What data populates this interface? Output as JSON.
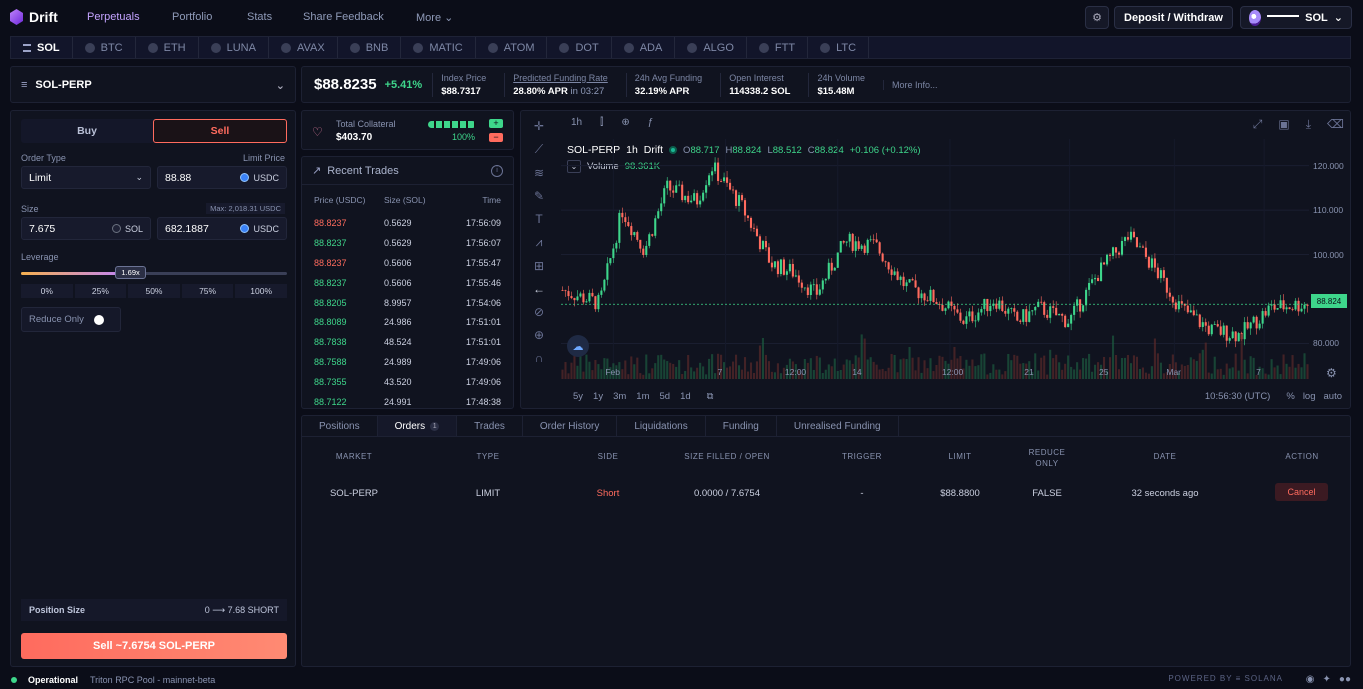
{
  "app": {
    "name": "Drift"
  },
  "nav": {
    "perpetuals": "Perpetuals",
    "portfolio": "Portfolio",
    "stats": "Stats",
    "feedback": "Share Feedback",
    "more": "More"
  },
  "header": {
    "deposit_withdraw": "Deposit / Withdraw",
    "wallet_label": "SOL"
  },
  "markets": [
    "SOL",
    "BTC",
    "ETH",
    "LUNA",
    "AVAX",
    "BNB",
    "MATIC",
    "ATOM",
    "DOT",
    "ADA",
    "ALGO",
    "FTT",
    "LTC"
  ],
  "pair": "SOL-PERP",
  "stats": {
    "price": "$88.8235",
    "change": "+5.41%",
    "index_label": "Index Price",
    "index_value": "$88.7317",
    "funding_label": "Predicted Funding Rate",
    "funding_value": "28.80% APR",
    "funding_in": "in 03:27",
    "avg_label": "24h Avg Funding",
    "avg_value": "32.19% APR",
    "oi_label": "Open Interest",
    "oi_value": "114338.2 SOL",
    "vol_label": "24h Volume",
    "vol_value": "$15.48M",
    "more": "More Info..."
  },
  "order": {
    "buy": "Buy",
    "sell": "Sell",
    "order_type_label": "Order Type",
    "order_type": "Limit",
    "limit_label": "Limit Price",
    "limit_value": "88.88",
    "usdc": "USDC",
    "size_label": "Size",
    "max_label": "Max: 2,018.31 USDC",
    "size_value": "7.675",
    "sol": "SOL",
    "size_usdc": "682.1887",
    "leverage_label": "Leverage",
    "leverage_value": "1.69x",
    "leverage_fraction": 0.4,
    "lev_options": [
      "0%",
      "25%",
      "50%",
      "75%",
      "100%"
    ],
    "reduce_only": "Reduce Only",
    "position_label": "Position Size",
    "position_value": "0 ⟶ 7.68 SHORT",
    "submit": "Sell ~7.6754 SOL-PERP"
  },
  "collateral": {
    "label": "Total Collateral",
    "value": "$403.70",
    "pct": "100%"
  },
  "trades": {
    "title": "Recent Trades",
    "cols": [
      "Price (USDC)",
      "Size (SOL)",
      "Time"
    ],
    "rows": [
      {
        "price": "88.8237",
        "size": "0.5629",
        "time": "17:56:09",
        "side": "red"
      },
      {
        "price": "88.8237",
        "size": "0.5629",
        "time": "17:56:07",
        "side": "green"
      },
      {
        "price": "88.8237",
        "size": "0.5606",
        "time": "17:55:47",
        "side": "red"
      },
      {
        "price": "88.8237",
        "size": "0.5606",
        "time": "17:55:46",
        "side": "green"
      },
      {
        "price": "88.8205",
        "size": "8.9957",
        "time": "17:54:06",
        "side": "green"
      },
      {
        "price": "88.8089",
        "size": "24.986",
        "time": "17:51:01",
        "side": "green"
      },
      {
        "price": "88.7838",
        "size": "48.524",
        "time": "17:51:01",
        "side": "green"
      },
      {
        "price": "88.7588",
        "size": "24.989",
        "time": "17:49:06",
        "side": "green"
      },
      {
        "price": "88.7355",
        "size": "43.520",
        "time": "17:49:06",
        "side": "green"
      },
      {
        "price": "88.7122",
        "size": "24.991",
        "time": "17:48:38",
        "side": "green"
      }
    ]
  },
  "chart": {
    "interval": "1h",
    "symbol": "SOL-PERP",
    "source": "Drift",
    "o": "88.717",
    "h": "88.824",
    "l": "88.512",
    "c": "88.824",
    "chg": "+0.106 (+0.12%)",
    "volume_label": "Volume",
    "volume_value": "98.361K",
    "y_ticks": [
      "120.000",
      "110.000",
      "100.000",
      "80.000"
    ],
    "x_ticks": [
      "Feb",
      "7",
      "12:00",
      "14",
      "12:00",
      "21",
      "25",
      "Mar",
      "7"
    ],
    "ranges": [
      "5y",
      "1y",
      "3m",
      "1m",
      "5d",
      "1d"
    ],
    "time": "10:56:30 (UTC)",
    "pct": "%",
    "log": "log",
    "auto": "auto",
    "last": "88.824"
  },
  "orders": {
    "tabs": [
      "Positions",
      "Orders",
      "Trades",
      "Order History",
      "Liquidations",
      "Funding",
      "Unrealised Funding"
    ],
    "orders_count": "1",
    "headers": [
      "MARKET",
      "TYPE",
      "SIDE",
      "SIZE FILLED / OPEN",
      "TRIGGER",
      "LIMIT",
      "REDUCE ONLY",
      "DATE",
      "ACTION"
    ],
    "row": {
      "market": "SOL-PERP",
      "type": "LIMIT",
      "side": "Short",
      "size": "0.0000 / 7.6754",
      "trigger": "-",
      "limit": "$88.8800",
      "reduce": "FALSE",
      "date": "32 seconds ago",
      "action": "Cancel"
    }
  },
  "footer": {
    "status": "Operational",
    "rpc": "Triton RPC Pool - mainnet-beta",
    "powered": "POWERED BY  ≡ SOLANA"
  }
}
